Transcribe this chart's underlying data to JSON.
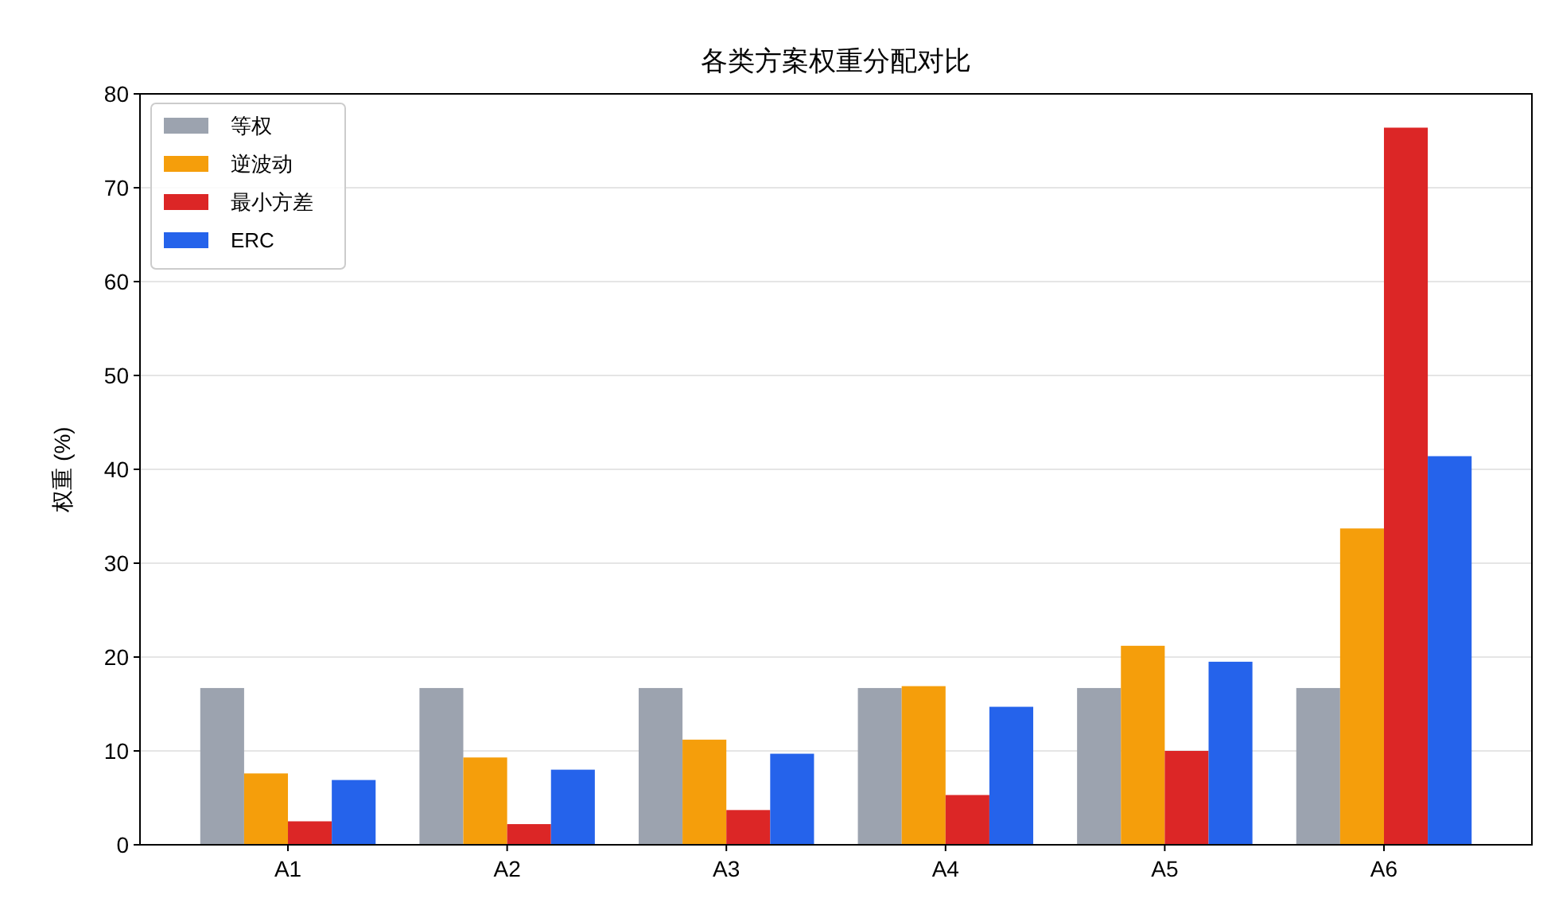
{
  "chart_data": {
    "type": "bar",
    "title": "各类方案权重分配对比",
    "ylabel": "权重 (%)",
    "categories": [
      "A1",
      "A2",
      "A3",
      "A4",
      "A5",
      "A6"
    ],
    "series": [
      {
        "name": "等权",
        "color": "#9ca3af",
        "values": [
          16.7,
          16.7,
          16.7,
          16.7,
          16.7,
          16.7
        ]
      },
      {
        "name": "逆波动",
        "color": "#f59e0b",
        "values": [
          7.6,
          9.3,
          11.2,
          16.9,
          21.2,
          33.7
        ]
      },
      {
        "name": "最小方差",
        "color": "#dc2626",
        "values": [
          2.5,
          2.2,
          3.7,
          5.3,
          10.0,
          76.4
        ]
      },
      {
        "name": "ERC",
        "color": "#2563eb",
        "values": [
          6.9,
          8.0,
          9.7,
          14.7,
          19.5,
          41.4
        ]
      }
    ],
    "ylim": [
      0,
      80
    ],
    "yticks": [
      0,
      10,
      20,
      30,
      40,
      50,
      60,
      70,
      80
    ],
    "grid": "y",
    "legend": "top left"
  }
}
